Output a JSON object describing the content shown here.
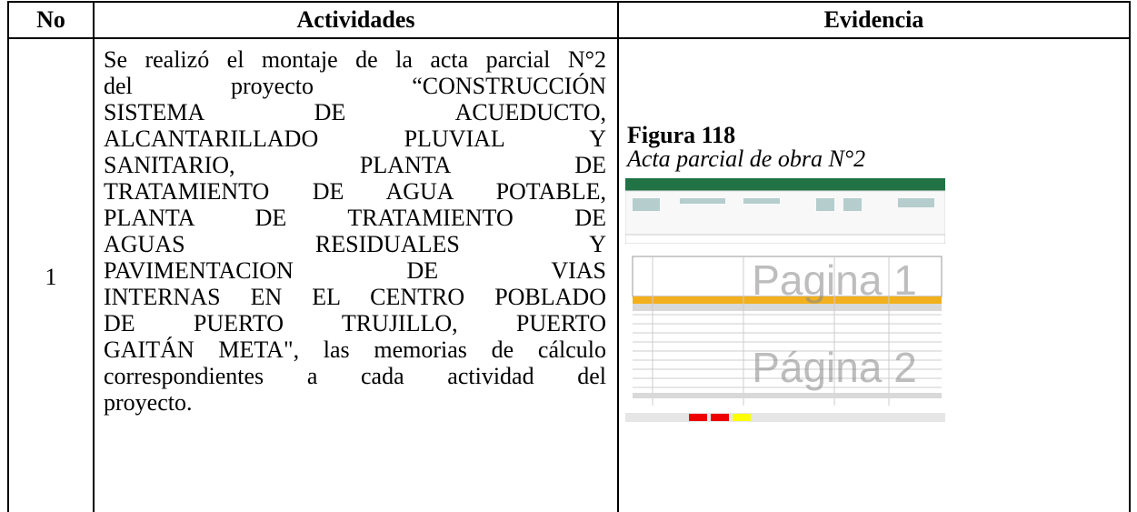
{
  "table": {
    "headers": [
      "No",
      "Actividades",
      "Evidencia"
    ],
    "rows": [
      {
        "no": "1",
        "activity_lines": [
          "Se realizó el montaje de la acta parcial N°2",
          "del proyecto “CONSTRUCCIÓN",
          "SISTEMA DE ACUEDUCTO,",
          "ALCANTARILLADO PLUVIAL Y",
          "SANITARIO, PLANTA DE",
          "TRATAMIENTO DE AGUA POTABLE,",
          "PLANTA DE TRATAMIENTO DE",
          "AGUAS RESIDUALES Y",
          "PAVIMENTACION DE VIAS",
          "INTERNAS EN EL CENTRO POBLADO",
          "DE PUERTO TRUJILLO, PUERTO",
          "GAITÁN META\", las memorias de cálculo",
          "correspondientes a cada actividad del",
          "proyecto."
        ],
        "figure_label": "Figura 118",
        "figure_caption": "Acta parcial de obra N°2",
        "image": {
          "watermarks": [
            "Pagina 1",
            "Página 2"
          ]
        }
      }
    ]
  }
}
